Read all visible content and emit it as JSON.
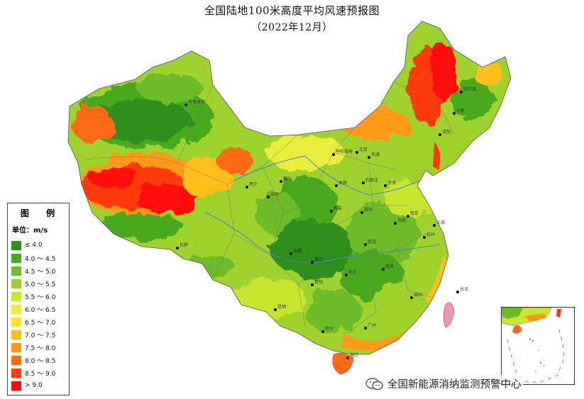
{
  "title": "全国陆地100米高度平均风速预报图",
  "subtitle": "（2022年12月）",
  "legend": {
    "heading": "图  例",
    "unit": "单位：m/s",
    "items": [
      {
        "label": "≤ 4.0",
        "color": "#2f8f1a"
      },
      {
        "label": "4.0 ～ 4.5",
        "color": "#4aa81f"
      },
      {
        "label": "4.5 ～ 5.0",
        "color": "#6dbb25"
      },
      {
        "label": "5.0 ～ 5.5",
        "color": "#9ed22c"
      },
      {
        "label": "5.5 ～ 6.0",
        "color": "#c8e52f"
      },
      {
        "label": "6.0 ～ 6.5",
        "color": "#e8ee3a"
      },
      {
        "label": "6.5 ～ 7.0",
        "color": "#ffe22a"
      },
      {
        "label": "7.0 ～ 7.5",
        "color": "#ffbf1f"
      },
      {
        "label": "7.5 ～ 8.0",
        "color": "#ff9a18"
      },
      {
        "label": "8.0 ～ 8.5",
        "color": "#ff6a12"
      },
      {
        "label": "8.5 ～ 9.0",
        "color": "#ff3a0e"
      },
      {
        "label": "> 9.0",
        "color": "#ff0a0a"
      }
    ]
  },
  "cities": [
    {
      "name": "哈尔滨"
    },
    {
      "name": "长春"
    },
    {
      "name": "沈阳"
    },
    {
      "name": "北京"
    },
    {
      "name": "天津"
    },
    {
      "name": "呼和浩特"
    },
    {
      "name": "石家庄"
    },
    {
      "name": "太原"
    },
    {
      "name": "银川"
    },
    {
      "name": "济南"
    },
    {
      "name": "西宁"
    },
    {
      "name": "兰州"
    },
    {
      "name": "郑州"
    },
    {
      "name": "西安"
    },
    {
      "name": "南京"
    },
    {
      "name": "合肥"
    },
    {
      "name": "上海"
    },
    {
      "name": "武汉"
    },
    {
      "name": "成都"
    },
    {
      "name": "重庆"
    },
    {
      "name": "杭州"
    },
    {
      "name": "长沙"
    },
    {
      "name": "南昌"
    },
    {
      "name": "贵阳"
    },
    {
      "name": "福州"
    },
    {
      "name": "昆明"
    },
    {
      "name": "南宁"
    },
    {
      "name": "广州"
    },
    {
      "name": "台北"
    },
    {
      "name": "海口"
    },
    {
      "name": "乌鲁木齐"
    },
    {
      "name": "拉萨"
    }
  ],
  "watermark": "全国新能源消纳监测预警中心"
}
